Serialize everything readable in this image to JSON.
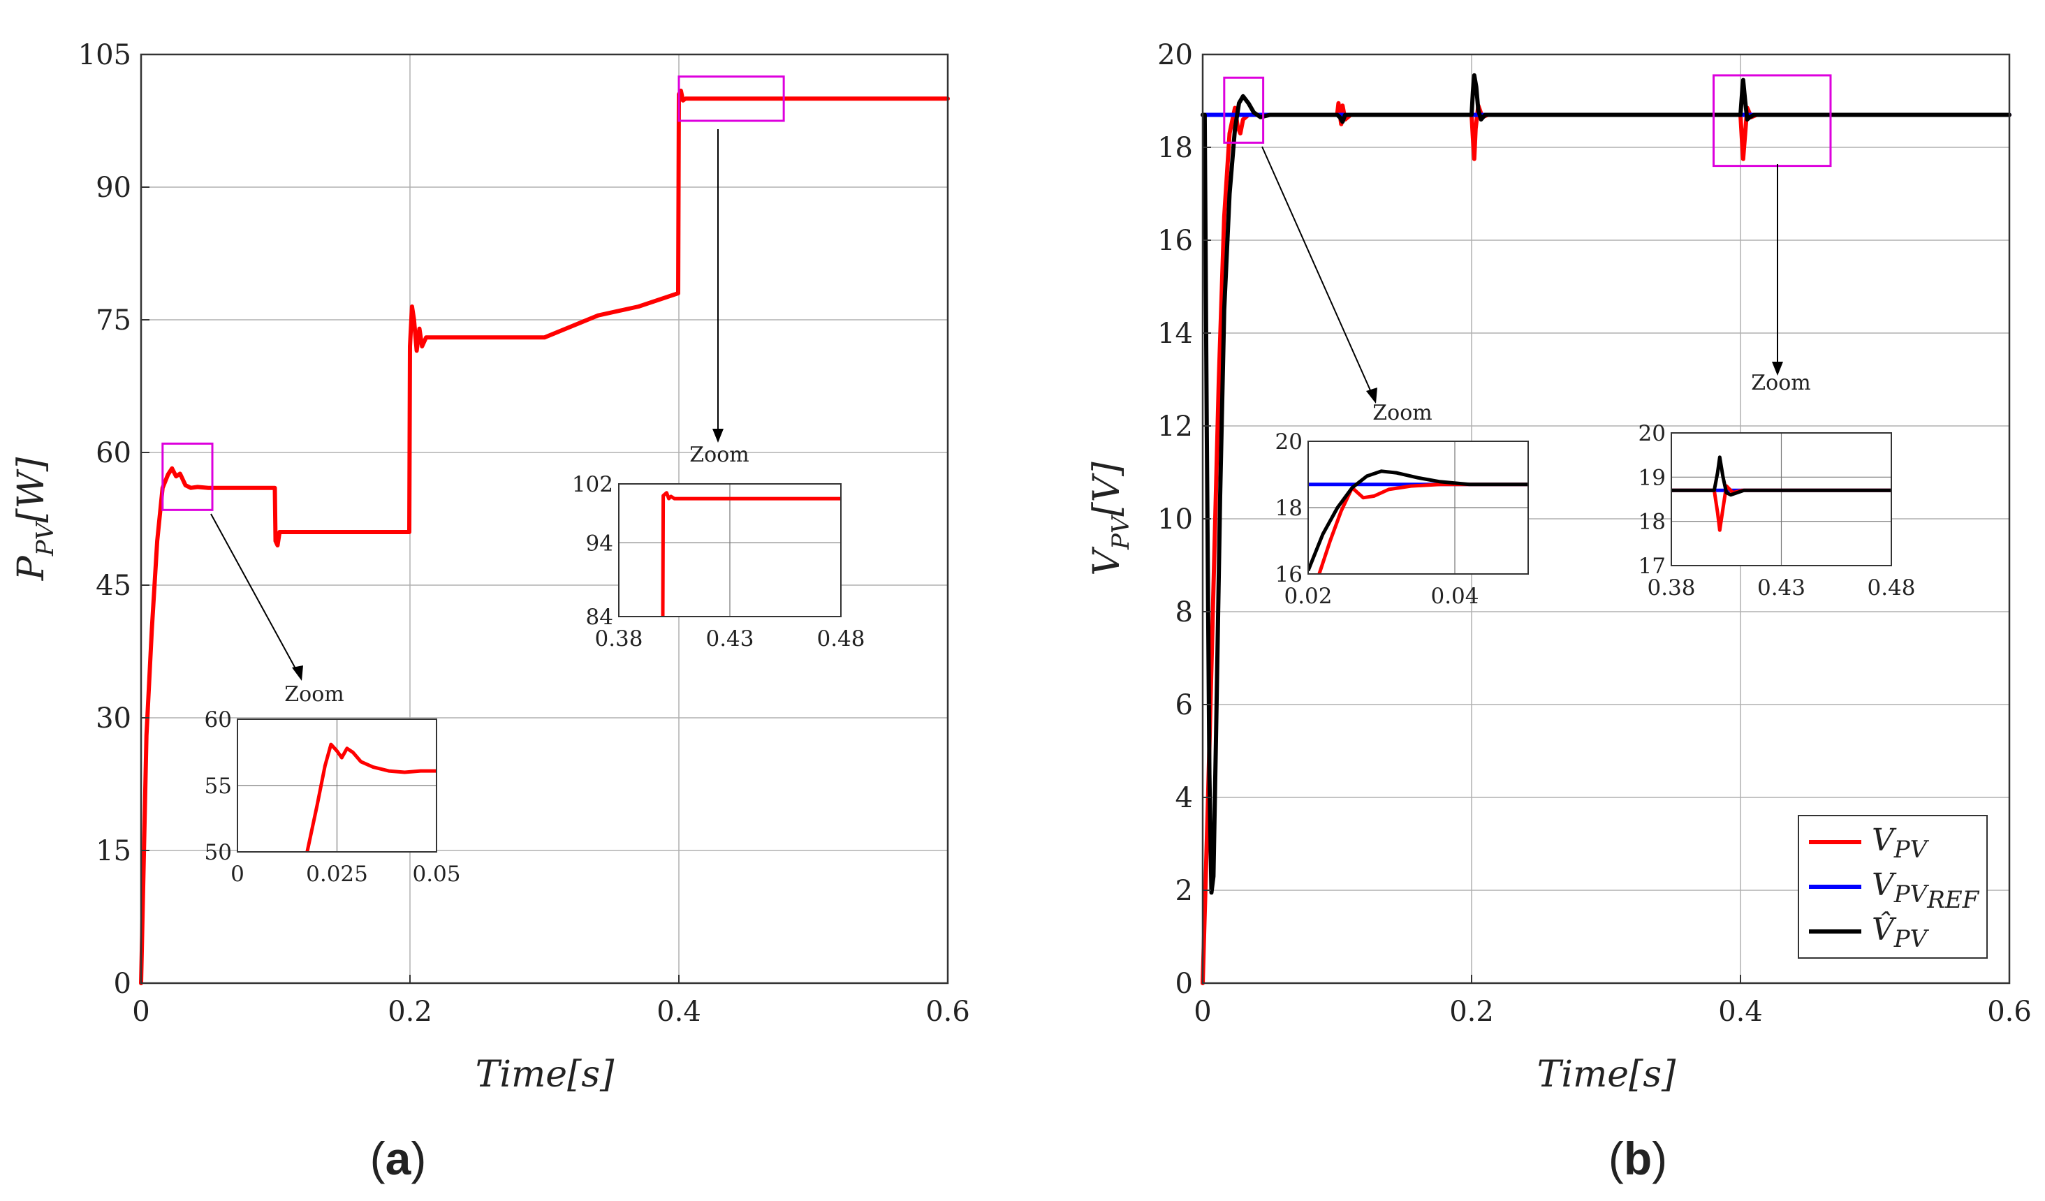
{
  "colors": {
    "red": "#ff0000",
    "blue": "#0000ff",
    "black": "#000000",
    "highlight": "#dd00dd",
    "grid": "#b0b0b0",
    "axis": "#333333"
  },
  "chart_data": [
    {
      "id": "a",
      "type": "line",
      "panel_label": "(a)",
      "panel_letter": "a",
      "xlabel": "Time[s]",
      "ylabel": "P",
      "ylabel_sub": "PV",
      "ylabel_unit": "[W]",
      "xlim": [
        0,
        0.6
      ],
      "ylim": [
        0,
        105
      ],
      "xticks": [
        0,
        0.2,
        0.4,
        0.6
      ],
      "xtick_labels": [
        "0",
        "0.2",
        "0.4",
        "0.6"
      ],
      "yticks": [
        0,
        15,
        30,
        45,
        60,
        75,
        90,
        105
      ],
      "ytick_labels": [
        "0",
        "15",
        "30",
        "45",
        "60",
        "75",
        "90",
        "105"
      ],
      "grid": true,
      "series": [
        {
          "name": "P_PV",
          "color": "red",
          "x": [
            0,
            0.004,
            0.008,
            0.012,
            0.016,
            0.02,
            0.023,
            0.026,
            0.029,
            0.033,
            0.037,
            0.042,
            0.05,
            0.06,
            0.08,
            0.0995,
            0.1,
            0.1015,
            0.103,
            0.106,
            0.11,
            0.13,
            0.16,
            0.19,
            0.1995,
            0.2,
            0.2015,
            0.203,
            0.205,
            0.207,
            0.209,
            0.212,
            0.216,
            0.22,
            0.25,
            0.28,
            0.3,
            0.34,
            0.37,
            0.3995,
            0.4,
            0.4015,
            0.403,
            0.405,
            0.41,
            0.45,
            0.5,
            0.6
          ],
          "y": [
            0,
            28,
            40,
            50,
            56,
            57.5,
            58.2,
            57.3,
            57.6,
            56.3,
            56,
            56.1,
            56,
            56,
            56,
            56,
            50,
            49.5,
            51,
            51,
            51,
            51,
            51,
            51,
            51,
            72,
            76.5,
            75,
            71.5,
            74,
            72,
            73,
            73,
            73,
            73,
            73,
            73,
            75.5,
            76.5,
            78,
            100.5,
            100.9,
            99.8,
            100,
            100,
            100,
            100,
            100
          ]
        }
      ],
      "highlights": [
        {
          "x": [
            0.016,
            0.053
          ],
          "y": [
            53.5,
            61
          ]
        },
        {
          "x": [
            0.4,
            0.478
          ],
          "y": [
            97.5,
            102.5
          ]
        }
      ],
      "zooms": [
        {
          "title": "Zoom",
          "xlim": [
            0,
            0.05
          ],
          "ylim": [
            50,
            60
          ],
          "xticks": [
            0,
            0.025,
            0.05
          ],
          "xtick_labels": [
            "0",
            "0.025",
            "0.05"
          ],
          "yticks": [
            50,
            55,
            60
          ],
          "ytick_labels": [
            "50",
            "55",
            "60"
          ],
          "series": [
            {
              "color": "red",
              "x": [
                0.0175,
                0.02,
                0.022,
                0.0235,
                0.025,
                0.0262,
                0.0275,
                0.029,
                0.031,
                0.034,
                0.038,
                0.042,
                0.046,
                0.05
              ],
              "y": [
                50,
                53.5,
                56.5,
                58.1,
                57.6,
                57.1,
                57.8,
                57.5,
                56.8,
                56.4,
                56.1,
                56,
                56.1,
                56.1
              ]
            }
          ]
        },
        {
          "title": "Zoom",
          "xlim": [
            0.38,
            0.48
          ],
          "ylim": [
            84,
            102
          ],
          "xticks": [
            0.38,
            0.43,
            0.48
          ],
          "xtick_labels": [
            "0.38",
            "0.43",
            "0.48"
          ],
          "yticks": [
            84,
            94,
            102
          ],
          "ytick_labels": [
            "84",
            "94",
            "102"
          ],
          "series": [
            {
              "color": "red",
              "x": [
                0.3998,
                0.4,
                0.4015,
                0.4025,
                0.4035,
                0.405,
                0.41,
                0.45,
                0.48
              ],
              "y": [
                84,
                100.4,
                100.8,
                100,
                100.3,
                100,
                100,
                100,
                100
              ]
            }
          ]
        }
      ]
    },
    {
      "id": "b",
      "type": "line",
      "panel_label": "(b)",
      "panel_letter": "b",
      "xlabel": "Time[s]",
      "ylabel": "V",
      "ylabel_sub": "PV",
      "ylabel_unit": "[V]",
      "xlim": [
        0,
        0.6
      ],
      "ylim": [
        0,
        20
      ],
      "xticks": [
        0,
        0.2,
        0.4,
        0.6
      ],
      "xtick_labels": [
        "0",
        "0.2",
        "0.4",
        "0.6"
      ],
      "yticks": [
        0,
        2,
        4,
        6,
        8,
        10,
        12,
        14,
        16,
        18,
        20
      ],
      "ytick_labels": [
        "0",
        "2",
        "4",
        "6",
        "8",
        "10",
        "12",
        "14",
        "16",
        "18",
        "20"
      ],
      "grid": true,
      "legend": {
        "position": "bottom-right",
        "entries": [
          {
            "label": "V",
            "sub": "PV",
            "color": "red"
          },
          {
            "label": "V",
            "sub": "PV",
            "subsub": "REF",
            "color": "blue"
          },
          {
            "label": "V̂",
            "sub": "PV",
            "color": "black"
          }
        ]
      },
      "series": [
        {
          "name": "V_PV",
          "color": "red",
          "x": [
            0,
            0.004,
            0.008,
            0.012,
            0.016,
            0.02,
            0.024,
            0.026,
            0.028,
            0.03,
            0.034,
            0.04,
            0.05,
            0.1,
            0.101,
            0.103,
            0.104,
            0.106,
            0.11,
            0.2,
            0.201,
            0.202,
            0.203,
            0.205,
            0.208,
            0.212,
            0.4,
            0.401,
            0.402,
            0.4035,
            0.405,
            0.408,
            0.412,
            0.6
          ],
          "y": [
            0,
            4,
            8.5,
            13,
            16.5,
            18.3,
            18.85,
            18.45,
            18.3,
            18.6,
            18.7,
            18.7,
            18.7,
            18.7,
            18.95,
            18.5,
            18.9,
            18.6,
            18.7,
            18.7,
            18.2,
            17.75,
            18.4,
            18.9,
            18.65,
            18.7,
            18.7,
            18.2,
            17.75,
            18.3,
            18.85,
            18.65,
            18.7,
            18.7
          ]
        },
        {
          "name": "V_PV_REF",
          "color": "blue",
          "x": [
            0,
            0.6
          ],
          "y": [
            18.7,
            18.7
          ]
        },
        {
          "name": "V_PV_hat",
          "color": "black",
          "x": [
            0,
            0.0015,
            0.003,
            0.005,
            0.0065,
            0.008,
            0.01,
            0.013,
            0.016,
            0.02,
            0.024,
            0.027,
            0.03,
            0.034,
            0.038,
            0.043,
            0.05,
            0.1,
            0.102,
            0.104,
            0.106,
            0.11,
            0.2,
            0.201,
            0.202,
            0.2035,
            0.205,
            0.207,
            0.21,
            0.4,
            0.401,
            0.402,
            0.4035,
            0.405,
            0.407,
            0.41,
            0.6
          ],
          "y": [
            18.7,
            18.7,
            12,
            4.5,
            1.95,
            2.3,
            5.5,
            10.5,
            14.5,
            17,
            18.4,
            18.95,
            19.1,
            18.95,
            18.75,
            18.65,
            18.7,
            18.7,
            18.65,
            18.55,
            18.7,
            18.7,
            18.7,
            19.2,
            19.55,
            19.3,
            18.8,
            18.6,
            18.7,
            18.7,
            19.1,
            19.45,
            19.0,
            18.6,
            18.65,
            18.7,
            18.7
          ]
        }
      ],
      "highlights": [
        {
          "x": [
            0.016,
            0.045
          ],
          "y": [
            18.1,
            19.5
          ]
        },
        {
          "x": [
            0.38,
            0.467
          ],
          "y": [
            17.6,
            19.55
          ]
        }
      ],
      "zooms": [
        {
          "title": "Zoom",
          "xlim": [
            0.02,
            0.05
          ],
          "ylim": [
            16,
            20
          ],
          "xticks": [
            0.02,
            0.04
          ],
          "xtick_labels": [
            "0.02",
            "0.04"
          ],
          "yticks": [
            16,
            18,
            20
          ],
          "ytick_labels": [
            "16",
            "18",
            "20"
          ],
          "series": [
            {
              "color": "blue",
              "x": [
                0.02,
                0.05
              ],
              "y": [
                18.7,
                18.7
              ]
            },
            {
              "color": "red",
              "x": [
                0.0215,
                0.023,
                0.0245,
                0.026,
                0.0275,
                0.029,
                0.031,
                0.034,
                0.038,
                0.042,
                0.046,
                0.05
              ],
              "y": [
                16,
                17,
                17.9,
                18.6,
                18.3,
                18.35,
                18.55,
                18.65,
                18.7,
                18.7,
                18.7,
                18.7
              ]
            },
            {
              "color": "black",
              "x": [
                0.02,
                0.022,
                0.024,
                0.026,
                0.028,
                0.03,
                0.032,
                0.035,
                0.038,
                0.042,
                0.046,
                0.05
              ],
              "y": [
                16.1,
                17.2,
                18.0,
                18.6,
                18.95,
                19.1,
                19.05,
                18.9,
                18.78,
                18.7,
                18.7,
                18.7
              ]
            }
          ]
        },
        {
          "title": "Zoom",
          "xlim": [
            0.38,
            0.48
          ],
          "ylim": [
            17,
            20
          ],
          "xticks": [
            0.38,
            0.43,
            0.48
          ],
          "xtick_labels": [
            "0.38",
            "0.43",
            "0.48"
          ],
          "yticks": [
            17,
            18,
            19,
            20
          ],
          "ytick_labels": [
            "17",
            "18",
            "19",
            "20"
          ],
          "series": [
            {
              "color": "blue",
              "x": [
                0.38,
                0.48
              ],
              "y": [
                18.7,
                18.7
              ]
            },
            {
              "color": "red",
              "x": [
                0.38,
                0.3995,
                0.401,
                0.402,
                0.4035,
                0.405,
                0.408,
                0.412,
                0.48
              ],
              "y": [
                18.7,
                18.7,
                18.2,
                17.8,
                18.3,
                18.8,
                18.65,
                18.7,
                18.7
              ]
            },
            {
              "color": "black",
              "x": [
                0.38,
                0.3995,
                0.401,
                0.402,
                0.4035,
                0.405,
                0.407,
                0.41,
                0.413,
                0.48
              ],
              "y": [
                18.7,
                18.7,
                19.1,
                19.45,
                19.0,
                18.65,
                18.6,
                18.65,
                18.7,
                18.7
              ]
            }
          ]
        }
      ]
    }
  ]
}
